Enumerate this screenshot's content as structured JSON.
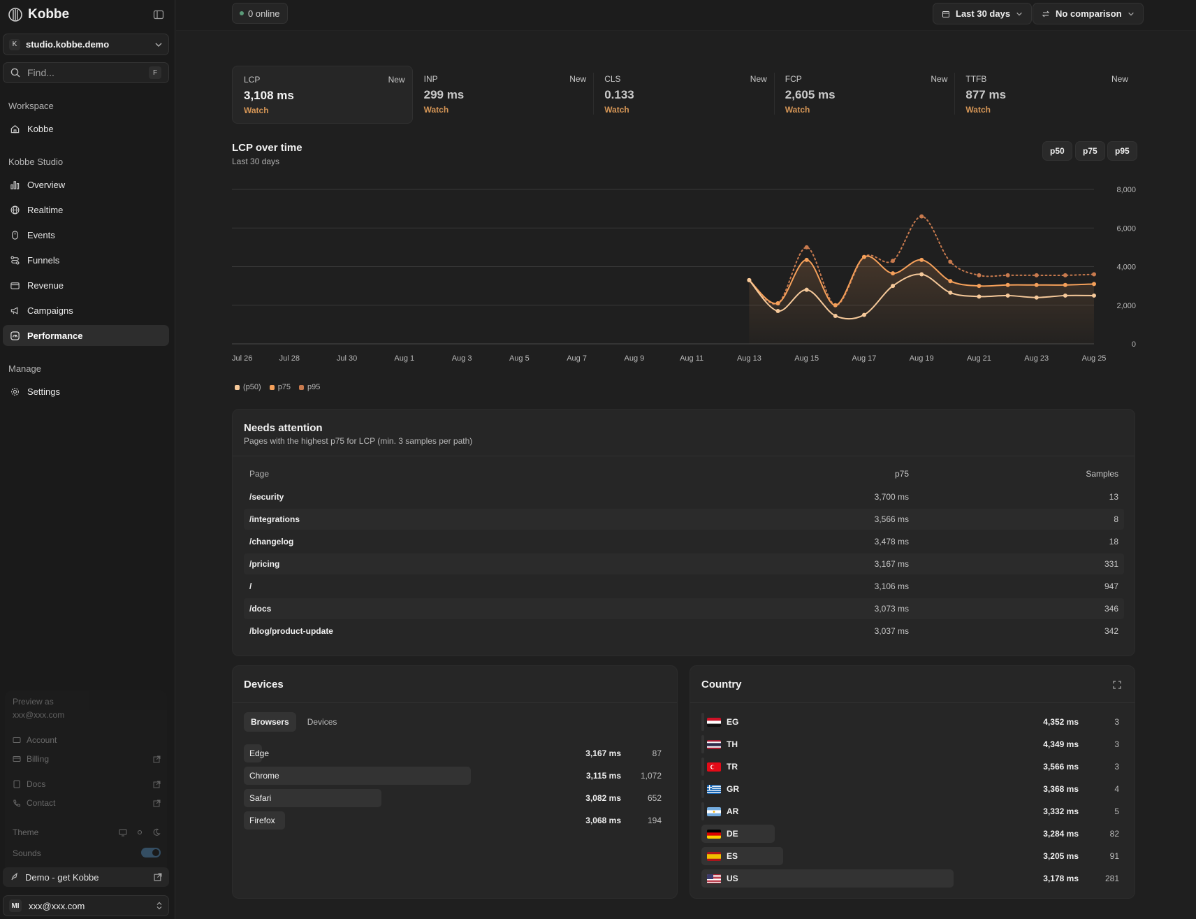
{
  "app": {
    "brand": "Kobbe"
  },
  "sidebar": {
    "site": {
      "badge": "K",
      "name": "studio.kobbe.demo"
    },
    "find": {
      "placeholder": "Find...",
      "shortcut": "F"
    },
    "workspace_label": "Workspace",
    "workspace_items": [
      {
        "label": "Kobbe",
        "icon": "home-icon"
      }
    ],
    "studio_label": "Kobbe Studio",
    "studio_items": [
      {
        "label": "Overview",
        "icon": "bar-chart-icon"
      },
      {
        "label": "Realtime",
        "icon": "globe-icon"
      },
      {
        "label": "Events",
        "icon": "mouse-icon"
      },
      {
        "label": "Funnels",
        "icon": "funnel-icon"
      },
      {
        "label": "Revenue",
        "icon": "wallet-icon"
      },
      {
        "label": "Campaigns",
        "icon": "megaphone-icon"
      },
      {
        "label": "Performance",
        "icon": "gauge-icon",
        "active": true
      }
    ],
    "manage_label": "Manage",
    "manage_items": [
      {
        "label": "Settings",
        "icon": "gear-icon"
      }
    ],
    "preview": {
      "label": "Preview as",
      "email": "xxx@xxx.com",
      "account": "Account",
      "billing": "Billing",
      "docs": "Docs",
      "contact": "Contact",
      "theme": "Theme",
      "sounds": "Sounds"
    },
    "demo_label": "Demo - get Kobbe",
    "user": {
      "initials": "MI",
      "email": "xxx@xxx.com"
    }
  },
  "topbar": {
    "online": "0 online",
    "range": "Last 30 days",
    "comparison": "No comparison"
  },
  "metrics": [
    {
      "name": "LCP",
      "value": "3,108 ms",
      "status": "Watch",
      "badge": "New",
      "selected": true
    },
    {
      "name": "INP",
      "value": "299 ms",
      "status": "Watch",
      "badge": "New"
    },
    {
      "name": "CLS",
      "value": "0.133",
      "status": "Watch",
      "badge": "New"
    },
    {
      "name": "FCP",
      "value": "2,605 ms",
      "status": "Watch",
      "badge": "New"
    },
    {
      "name": "TTFB",
      "value": "877 ms",
      "status": "Watch",
      "badge": "New"
    }
  ],
  "chart_section": {
    "title": "LCP over time",
    "subtitle": "Last 30 days",
    "percentile_buttons": [
      "p50",
      "p75",
      "p95"
    ]
  },
  "chart_data": {
    "type": "line",
    "x": [
      "Jul 26",
      "Jul 27",
      "Jul 28",
      "Jul 29",
      "Jul 30",
      "Jul 31",
      "Aug 1",
      "Aug 2",
      "Aug 3",
      "Aug 4",
      "Aug 5",
      "Aug 6",
      "Aug 7",
      "Aug 8",
      "Aug 9",
      "Aug 10",
      "Aug 11",
      "Aug 12",
      "Aug 13",
      "Aug 14",
      "Aug 15",
      "Aug 16",
      "Aug 17",
      "Aug 18",
      "Aug 19",
      "Aug 20",
      "Aug 21",
      "Aug 22",
      "Aug 23",
      "Aug 24",
      "Aug 25"
    ],
    "tick_labels": [
      "Jul 26",
      "Jul 28",
      "Jul 30",
      "Aug 1",
      "Aug 3",
      "Aug 5",
      "Aug 7",
      "Aug 9",
      "Aug 11",
      "Aug 13",
      "Aug 15",
      "Aug 17",
      "Aug 19",
      "Aug 21",
      "Aug 23",
      "Aug 25"
    ],
    "ylim": [
      0,
      8000
    ],
    "yticks": [
      "0",
      "2,000",
      "4,000",
      "6,000",
      "8,000"
    ],
    "grid": true,
    "legend_position": "bottom-left",
    "series": [
      {
        "name": "(p50)",
        "color": "#f6c99a",
        "style": "solid",
        "values": [
          null,
          null,
          null,
          null,
          null,
          null,
          null,
          null,
          null,
          null,
          null,
          null,
          null,
          null,
          null,
          null,
          null,
          null,
          3300,
          1700,
          2800,
          1450,
          1500,
          3000,
          3600,
          2650,
          2450,
          2500,
          2400,
          2500,
          2500
        ]
      },
      {
        "name": "p75",
        "color": "#f5a05a",
        "style": "solid",
        "values": [
          null,
          null,
          null,
          null,
          null,
          null,
          null,
          null,
          null,
          null,
          null,
          null,
          null,
          null,
          null,
          null,
          null,
          null,
          3300,
          2100,
          4350,
          2000,
          4500,
          3650,
          4350,
          3250,
          3000,
          3050,
          3050,
          3050,
          3100
        ]
      },
      {
        "name": "p95",
        "color": "#c87a4e",
        "style": "dotted",
        "values": [
          null,
          null,
          null,
          null,
          null,
          null,
          null,
          null,
          null,
          null,
          null,
          null,
          null,
          null,
          null,
          null,
          null,
          null,
          3300,
          2100,
          5000,
          2000,
          4500,
          4300,
          6600,
          4250,
          3550,
          3550,
          3550,
          3550,
          3600
        ]
      }
    ]
  },
  "attention": {
    "title": "Needs attention",
    "subtitle": "Pages with the highest p75 for LCP (min. 3 samples per path)",
    "columns": {
      "page": "Page",
      "p75": "p75",
      "samples": "Samples"
    },
    "rows": [
      {
        "page": "/security",
        "p75": "3,700 ms",
        "samples": "13"
      },
      {
        "page": "/integrations",
        "p75": "3,566 ms",
        "samples": "8"
      },
      {
        "page": "/changelog",
        "p75": "3,478 ms",
        "samples": "18"
      },
      {
        "page": "/pricing",
        "p75": "3,167 ms",
        "samples": "331"
      },
      {
        "page": "/",
        "p75": "3,106 ms",
        "samples": "947"
      },
      {
        "page": "/docs",
        "p75": "3,073 ms",
        "samples": "346"
      },
      {
        "page": "/blog/product-update",
        "p75": "3,037 ms",
        "samples": "342"
      }
    ]
  },
  "devices": {
    "title": "Devices",
    "tabs": [
      "Browsers",
      "Devices"
    ],
    "rows": [
      {
        "label": "Edge",
        "value": "3,167 ms",
        "count": "87",
        "share": 0.04
      },
      {
        "label": "Chrome",
        "value": "3,115 ms",
        "count": "1,072",
        "share": 0.5
      },
      {
        "label": "Safari",
        "value": "3,082 ms",
        "count": "652",
        "share": 0.3
      },
      {
        "label": "Firefox",
        "value": "3,068 ms",
        "count": "194",
        "share": 0.09
      }
    ]
  },
  "country": {
    "title": "Country",
    "rows": [
      {
        "code": "EG",
        "value": "4,352 ms",
        "count": "3",
        "share": 0.01
      },
      {
        "code": "TH",
        "value": "4,349 ms",
        "count": "3",
        "share": 0.01
      },
      {
        "code": "TR",
        "value": "3,566 ms",
        "count": "3",
        "share": 0.01
      },
      {
        "code": "GR",
        "value": "3,368 ms",
        "count": "4",
        "share": 0.01
      },
      {
        "code": "AR",
        "value": "3,332 ms",
        "count": "5",
        "share": 0.01
      },
      {
        "code": "DE",
        "value": "3,284 ms",
        "count": "82",
        "share": 0.16
      },
      {
        "code": "ES",
        "value": "3,205 ms",
        "count": "91",
        "share": 0.18
      },
      {
        "code": "US",
        "value": "3,178 ms",
        "count": "281",
        "share": 0.56
      }
    ]
  },
  "colors": {
    "accent": "#d49556",
    "online_dot": "#5a9a78"
  }
}
